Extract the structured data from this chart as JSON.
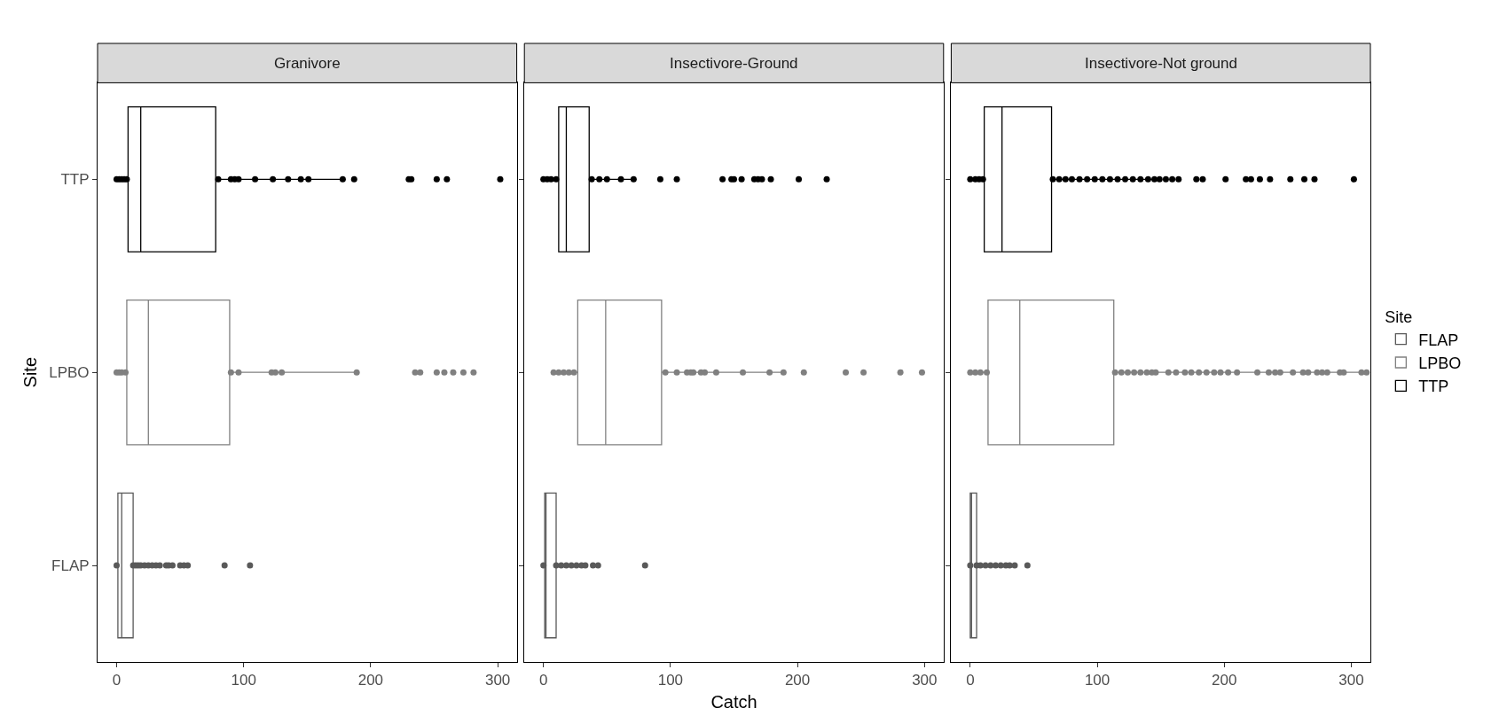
{
  "chart_data": [
    {
      "type": "box",
      "orientation": "horizontal",
      "title": "Granivore",
      "ylabel": "Site",
      "categories": [
        "TTP",
        "LPBO",
        "FLAP"
      ],
      "xlim": [
        -15,
        315
      ],
      "xticks": [
        0,
        100,
        200,
        300
      ],
      "legend": "right",
      "series": [
        {
          "name": "FLAP",
          "color": "#595959",
          "boxes": [
            null,
            null,
            {
              "low": 0,
              "q1": 1,
              "median": 4,
              "q3": 13,
              "high": 30,
              "outliers": [
                0,
                13,
                15,
                17,
                19,
                22,
                25,
                28,
                31,
                34,
                39,
                41,
                44,
                50,
                53,
                56,
                85,
                105
              ]
            }
          ]
        },
        {
          "name": "LPBO",
          "color": "#808080",
          "boxes": [
            null,
            {
              "low": 0,
              "q1": 8,
              "median": 25,
              "q3": 89,
              "high": 189,
              "outliers": [
                0,
                2,
                4,
                7,
                90,
                96,
                122,
                125,
                130,
                189,
                235,
                239,
                252,
                258,
                265,
                273,
                281
              ]
            },
            null
          ]
        },
        {
          "name": "TTP",
          "color": "#000000",
          "boxes": [
            {
              "low": 0,
              "q1": 9,
              "median": 19,
              "q3": 78,
              "high": 178,
              "outliers": [
                0,
                2,
                4,
                6,
                8,
                80,
                90,
                93,
                96,
                109,
                123,
                135,
                145,
                151,
                178,
                187,
                230,
                232,
                252,
                260,
                302
              ]
            },
            null,
            null
          ]
        }
      ]
    },
    {
      "type": "box",
      "orientation": "horizontal",
      "title": "Insectivore-Ground",
      "xlabel": "Catch",
      "categories": [
        "TTP",
        "LPBO",
        "FLAP"
      ],
      "xlim": [
        -15,
        315
      ],
      "xticks": [
        0,
        100,
        200,
        300
      ],
      "tick_labels": "x",
      "legend": "right",
      "series": [
        {
          "name": "FLAP",
          "color": "#595959",
          "boxes": [
            null,
            null,
            {
              "low": 0,
              "q1": 1,
              "median": 2,
              "q3": 10,
              "high": 20,
              "outliers": [
                0,
                10,
                14,
                18,
                22,
                26,
                30,
                33,
                39,
                43,
                80
              ]
            }
          ]
        },
        {
          "name": "LPBO",
          "color": "#808080",
          "boxes": [
            null,
            {
              "low": 8,
              "q1": 27,
              "median": 49,
              "q3": 93,
              "high": 189,
              "outliers": [
                8,
                12,
                16,
                20,
                24,
                96,
                105,
                113,
                116,
                118,
                124,
                127,
                136,
                157,
                178,
                189,
                205,
                238,
                252,
                281,
                298
              ]
            },
            null
          ]
        },
        {
          "name": "TTP",
          "color": "#000000",
          "boxes": [
            {
              "low": 0,
              "q1": 12,
              "median": 18,
              "q3": 36,
              "high": 71,
              "outliers": [
                0,
                3,
                6,
                10,
                38,
                44,
                50,
                61,
                71,
                92,
                105,
                141,
                148,
                150,
                156,
                166,
                169,
                172,
                179,
                201,
                223
              ]
            },
            null,
            null
          ]
        }
      ]
    },
    {
      "type": "box",
      "orientation": "horizontal",
      "title": "Insectivore-Not ground",
      "categories": [
        "TTP",
        "LPBO",
        "FLAP"
      ],
      "xlim": [
        -15,
        315
      ],
      "xticks": [
        0,
        100,
        200,
        300
      ],
      "tick_labels": "x",
      "legend": "right",
      "legend_title": "Site",
      "series": [
        {
          "name": "FLAP",
          "color": "#595959",
          "boxes": [
            null,
            null,
            {
              "low": 0,
              "q1": 0,
              "median": 1,
              "q3": 5,
              "high": 12,
              "outliers": [
                0,
                5,
                8,
                12,
                16,
                20,
                24,
                28,
                31,
                35,
                45
              ]
            }
          ]
        },
        {
          "name": "LPBO",
          "color": "#808080",
          "boxes": [
            null,
            {
              "low": 0,
              "q1": 14,
              "median": 39,
              "q3": 113,
              "high": 312,
              "outliers": [
                0,
                4,
                8,
                13,
                114,
                119,
                124,
                129,
                134,
                139,
                143,
                146,
                156,
                162,
                169,
                174,
                180,
                186,
                192,
                197,
                203,
                210,
                226,
                235,
                240,
                244,
                254,
                262,
                266,
                273,
                277,
                281,
                291,
                294,
                308,
                312
              ]
            },
            null
          ]
        },
        {
          "name": "TTP",
          "color": "#000000",
          "boxes": [
            {
              "low": 0,
              "q1": 11,
              "median": 25,
              "q3": 64,
              "high": 143,
              "outliers": [
                0,
                4,
                7,
                10,
                65,
                70,
                75,
                80,
                86,
                92,
                98,
                104,
                110,
                116,
                122,
                128,
                134,
                140,
                145,
                149,
                154,
                159,
                164,
                178,
                183,
                201,
                217,
                221,
                228,
                236,
                252,
                263,
                271,
                302
              ]
            },
            null,
            null
          ]
        }
      ]
    }
  ]
}
